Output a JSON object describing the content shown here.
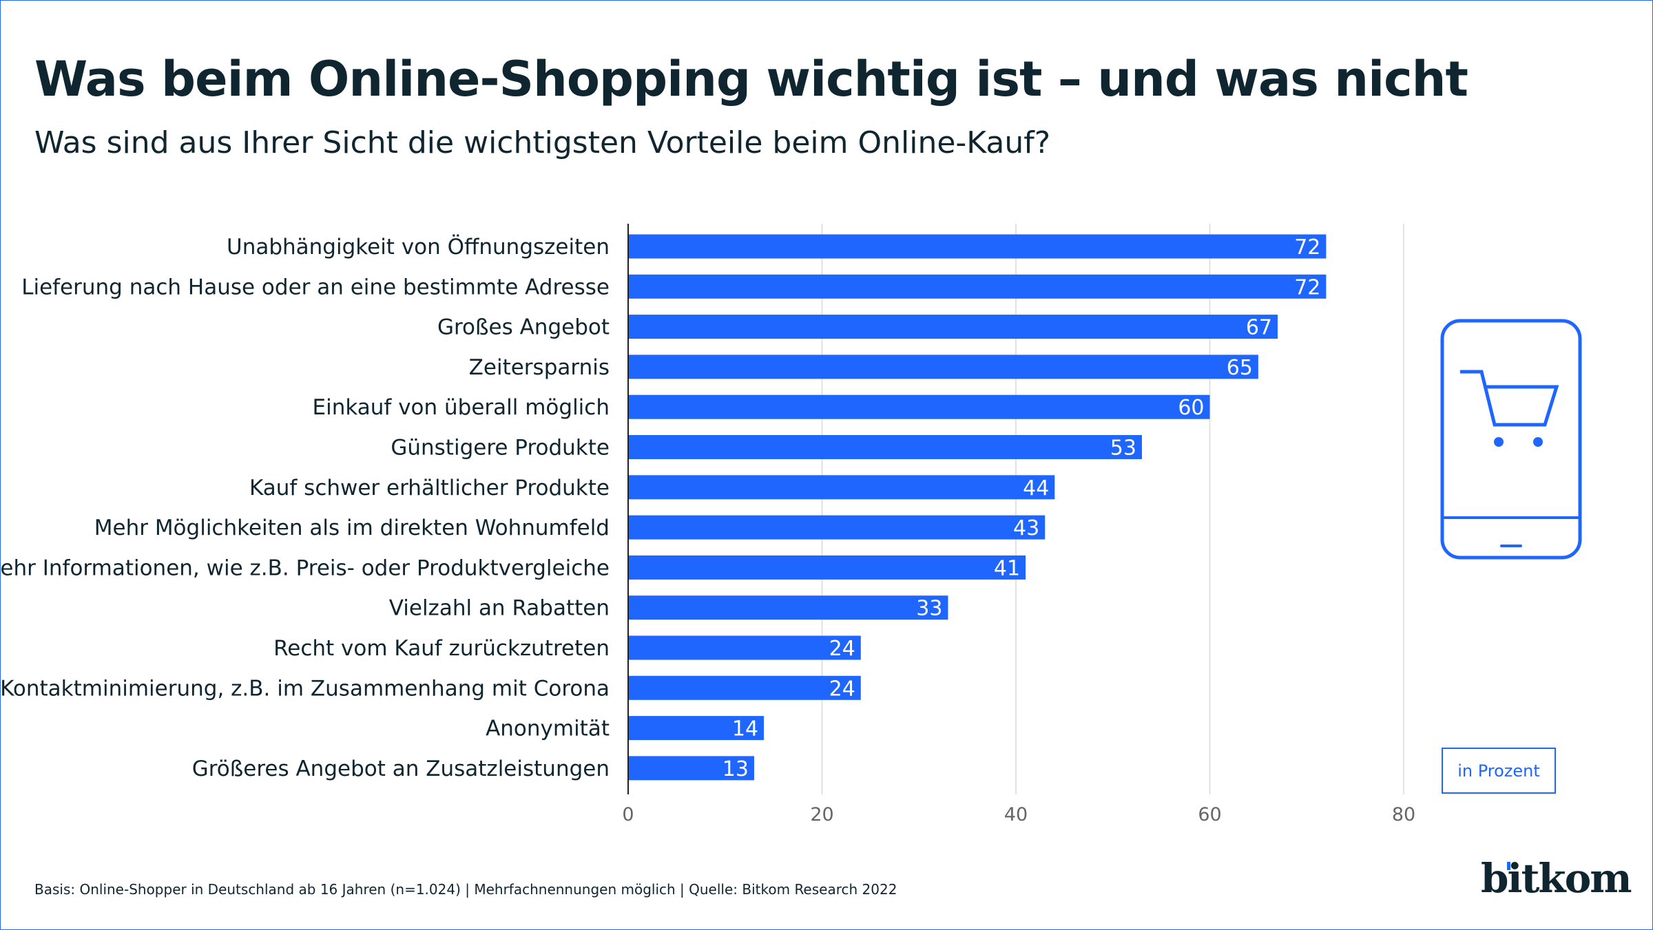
{
  "title": "Was beim Online-Shopping wichtig ist – und was nicht",
  "subtitle": "Was sind aus Ihrer Sicht die wichtigsten Vorteile beim Online-Kauf?",
  "unit_label": "in Prozent",
  "footer": "Basis: Online-Shopper in Deutschland ab 16 Jahren (n=1.024) | Mehrfachnennungen möglich | Quelle: Bitkom Research 2022",
  "logo": "bitkom",
  "icon": "smartphone-shopping-cart-icon",
  "colors": {
    "bar": "#1f66ff",
    "text": "#0f2530",
    "grid": "#d9d9d9",
    "axis": "#222222"
  },
  "chart_data": {
    "type": "bar",
    "orientation": "horizontal",
    "categories": [
      "Unabhängigkeit von Öffnungszeiten",
      "Lieferung nach Hause oder an eine bestimmte Adresse",
      "Großes Angebot",
      "Zeitersparnis",
      "Einkauf von überall möglich",
      "Günstigere Produkte",
      "Kauf schwer erhältlicher Produkte",
      "Mehr Möglichkeiten als im direkten Wohnumfeld",
      "Mehr Informationen, wie z.B. Preis- oder Produktvergleiche",
      "Vielzahl an Rabatten",
      "Recht vom Kauf zurückzutreten",
      "Kontaktminimierung, z.B. im Zusammenhang mit Corona",
      "Anonymität",
      "Größeres Angebot an Zusatzleistungen"
    ],
    "values": [
      72,
      72,
      67,
      65,
      60,
      53,
      44,
      43,
      41,
      33,
      24,
      24,
      14,
      13
    ],
    "xlim": [
      0,
      80
    ],
    "xticks": [
      "0",
      "20",
      "40",
      "60",
      "80"
    ],
    "grid": true,
    "data_labels": true
  }
}
